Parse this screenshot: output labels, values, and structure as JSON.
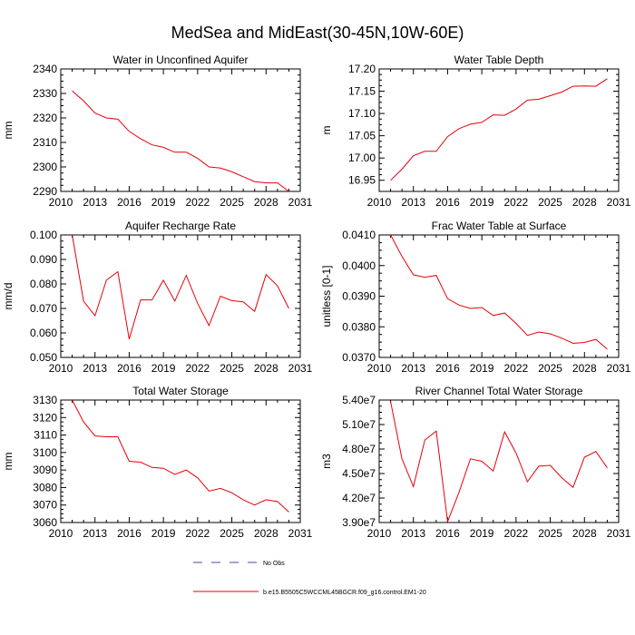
{
  "title": "MedSea and MidEast(30-45N,10W-60E)",
  "line_color": "#e8000b",
  "no_obs_color": "#5a3fb0",
  "legend": {
    "no_obs_label": "No Obs",
    "model_label": "b.e15.B5505C5WCCML45BGCR.f09_g16.control.EM1-20"
  },
  "chart_data": [
    {
      "type": "line",
      "title": "Water in Unconfined Aquifer",
      "ylabel": "mm",
      "xlabel": "",
      "xlim": [
        2010,
        2031
      ],
      "ylim": [
        2290,
        2340
      ],
      "xticks": [
        2010,
        2013,
        2016,
        2019,
        2022,
        2025,
        2028,
        2031
      ],
      "xtick_labels": [
        "2010",
        "2013",
        "2016",
        "2019",
        "2022",
        "2025",
        "2028",
        "2031"
      ],
      "yticks": [
        2290,
        2300,
        2310,
        2320,
        2330,
        2340
      ],
      "ytick_labels": [
        "2290",
        "2300",
        "2310",
        "2320",
        "2330",
        "2340"
      ],
      "x": [
        2011,
        2012,
        2013,
        2014,
        2015,
        2016,
        2017,
        2018,
        2019,
        2020,
        2021,
        2022,
        2023,
        2024,
        2025,
        2026,
        2027,
        2028,
        2029,
        2030
      ],
      "values": [
        2331,
        2327,
        2322,
        2320,
        2319.5,
        2314.5,
        2311.5,
        2309,
        2308,
        2306,
        2306,
        2303.5,
        2300,
        2299.5,
        2298,
        2296,
        2294,
        2293.5,
        2293.5,
        2290
      ]
    },
    {
      "type": "line",
      "title": "Water Table Depth",
      "ylabel": "m",
      "xlabel": "",
      "xlim": [
        2010,
        2031
      ],
      "ylim": [
        16.925,
        17.2
      ],
      "xticks": [
        2010,
        2013,
        2016,
        2019,
        2022,
        2025,
        2028,
        2031
      ],
      "xtick_labels": [
        "2010",
        "2013",
        "2016",
        "2019",
        "2022",
        "2025",
        "2028",
        "2031"
      ],
      "yticks": [
        16.95,
        17.0,
        17.05,
        17.1,
        17.15,
        17.2
      ],
      "ytick_labels": [
        "16.95",
        "17.00",
        "17.05",
        "17.10",
        "17.15",
        "17.20"
      ],
      "x": [
        2011,
        2012,
        2013,
        2014,
        2015,
        2016,
        2017,
        2018,
        2019,
        2020,
        2021,
        2022,
        2023,
        2024,
        2025,
        2026,
        2027,
        2028,
        2029,
        2030
      ],
      "values": [
        16.95,
        16.975,
        17.005,
        17.015,
        17.015,
        17.048,
        17.066,
        17.076,
        17.08,
        17.097,
        17.096,
        17.11,
        17.13,
        17.132,
        17.14,
        17.148,
        17.161,
        17.162,
        17.161,
        17.178
      ]
    },
    {
      "type": "line",
      "title": "Aquifer Recharge Rate",
      "ylabel": "mm/d",
      "xlabel": "",
      "xlim": [
        2010,
        2031
      ],
      "ylim": [
        0.05,
        0.1
      ],
      "xticks": [
        2010,
        2013,
        2016,
        2019,
        2022,
        2025,
        2028,
        2031
      ],
      "xtick_labels": [
        "2010",
        "2013",
        "2016",
        "2019",
        "2022",
        "2025",
        "2028",
        "2031"
      ],
      "yticks": [
        0.05,
        0.06,
        0.07,
        0.08,
        0.09,
        0.1
      ],
      "ytick_labels": [
        "0.050",
        "0.060",
        "0.070",
        "0.080",
        "0.090",
        "0.100"
      ],
      "x": [
        2011,
        2012,
        2013,
        2014,
        2015,
        2016,
        2017,
        2018,
        2019,
        2020,
        2021,
        2022,
        2023,
        2024,
        2025,
        2026,
        2027,
        2028,
        2029,
        2030
      ],
      "values": [
        0.1,
        0.073,
        0.067,
        0.0815,
        0.085,
        0.0575,
        0.0735,
        0.0735,
        0.0815,
        0.073,
        0.0835,
        0.072,
        0.063,
        0.075,
        0.0732,
        0.0727,
        0.0688,
        0.0838,
        0.0792,
        0.07
      ]
    },
    {
      "type": "line",
      "title": "Frac Water Table at Surface",
      "ylabel": "unitless [0-1]",
      "xlabel": "",
      "xlim": [
        2010,
        2031
      ],
      "ylim": [
        0.037,
        0.041
      ],
      "xticks": [
        2010,
        2013,
        2016,
        2019,
        2022,
        2025,
        2028,
        2031
      ],
      "xtick_labels": [
        "2010",
        "2013",
        "2016",
        "2019",
        "2022",
        "2025",
        "2028",
        "2031"
      ],
      "yticks": [
        0.037,
        0.038,
        0.039,
        0.04,
        0.041
      ],
      "ytick_labels": [
        "0.0370",
        "0.0380",
        "0.0390",
        "0.0400",
        "0.0410"
      ],
      "x": [
        2011,
        2012,
        2013,
        2014,
        2015,
        2016,
        2017,
        2018,
        2019,
        2020,
        2021,
        2022,
        2023,
        2024,
        2025,
        2026,
        2027,
        2028,
        2029,
        2030
      ],
      "values": [
        0.041,
        0.0403,
        0.0397,
        0.03962,
        0.03968,
        0.03892,
        0.03871,
        0.0386,
        0.03863,
        0.03837,
        0.03845,
        0.03811,
        0.03772,
        0.03783,
        0.03777,
        0.03763,
        0.03746,
        0.03749,
        0.03759,
        0.03727
      ]
    },
    {
      "type": "line",
      "title": "Total Water Storage",
      "ylabel": "mm",
      "xlabel": "",
      "xlim": [
        2010,
        2031
      ],
      "ylim": [
        3060,
        3130
      ],
      "xticks": [
        2010,
        2013,
        2016,
        2019,
        2022,
        2025,
        2028,
        2031
      ],
      "xtick_labels": [
        "2010",
        "2013",
        "2016",
        "2019",
        "2022",
        "2025",
        "2028",
        "2031"
      ],
      "yticks": [
        3060,
        3070,
        3080,
        3090,
        3100,
        3110,
        3120,
        3130
      ],
      "ytick_labels": [
        "3060",
        "3070",
        "3080",
        "3090",
        "3100",
        "3110",
        "3120",
        "3130"
      ],
      "x": [
        2011,
        2012,
        2013,
        2014,
        2015,
        2016,
        2017,
        2018,
        2019,
        2020,
        2021,
        2022,
        2023,
        2024,
        2025,
        2026,
        2027,
        2028,
        2029,
        2030
      ],
      "values": [
        3130,
        3117.5,
        3109.5,
        3109,
        3109,
        3095,
        3094.5,
        3091.5,
        3091,
        3087.5,
        3090,
        3085.5,
        3078,
        3079.5,
        3077,
        3073,
        3070,
        3073,
        3072,
        3066
      ]
    },
    {
      "type": "line",
      "title": "River Channel Total Water Storage",
      "ylabel": "m3",
      "xlabel": "",
      "xlim": [
        2010,
        2031
      ],
      "ylim": [
        39000000,
        54000000
      ],
      "xticks": [
        2010,
        2013,
        2016,
        2019,
        2022,
        2025,
        2028,
        2031
      ],
      "xtick_labels": [
        "2010",
        "2013",
        "2016",
        "2019",
        "2022",
        "2025",
        "2028",
        "2031"
      ],
      "yticks": [
        39000000,
        42000000,
        45000000,
        48000000,
        51000000,
        54000000
      ],
      "ytick_labels": [
        "3.90e7",
        "4.20e7",
        "4.50e7",
        "4.80e7",
        "5.10e7",
        "5.40e7"
      ],
      "x": [
        2011,
        2012,
        2013,
        2014,
        2015,
        2016,
        2017,
        2018,
        2019,
        2020,
        2021,
        2022,
        2023,
        2024,
        2025,
        2026,
        2027,
        2028,
        2029,
        2030
      ],
      "values": [
        53800000,
        46800000,
        43400000,
        49100000,
        50200000,
        39100000,
        42700000,
        46800000,
        46500000,
        45300000,
        50100000,
        47500000,
        44000000,
        45900000,
        46000000,
        44500000,
        43300000,
        47000000,
        47700000,
        45700000
      ]
    }
  ]
}
